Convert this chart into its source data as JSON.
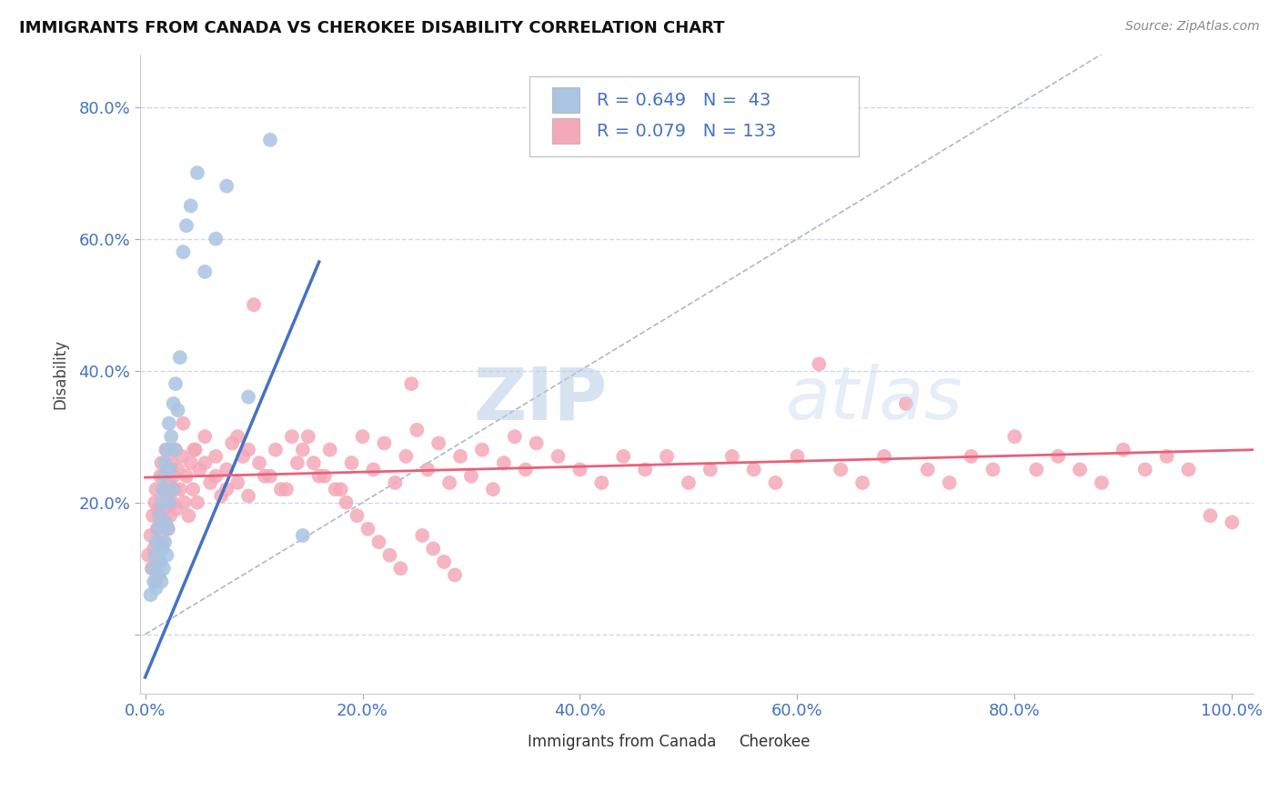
{
  "title": "IMMIGRANTS FROM CANADA VS CHEROKEE DISABILITY CORRELATION CHART",
  "source": "Source: ZipAtlas.com",
  "ylabel": "Disability",
  "xlim": [
    -0.005,
    1.02
  ],
  "ylim": [
    -0.09,
    0.88
  ],
  "xticks": [
    0.0,
    0.2,
    0.4,
    0.6,
    0.8,
    1.0
  ],
  "yticks": [
    0.0,
    0.2,
    0.4,
    0.6,
    0.8
  ],
  "ytick_labels": [
    "",
    "20.0%",
    "40.0%",
    "60.0%",
    "80.0%"
  ],
  "xtick_labels": [
    "0.0%",
    "20.0%",
    "40.0%",
    "60.0%",
    "80.0%",
    "100.0%"
  ],
  "blue_R": 0.649,
  "blue_N": 43,
  "pink_R": 0.079,
  "pink_N": 133,
  "blue_color": "#aac4e2",
  "pink_color": "#f4a8b8",
  "blue_line_color": "#4472c4",
  "pink_line_color": "#e8607a",
  "ref_line_color": "#b0b8c8",
  "tick_color": "#4472c4",
  "grid_color": "#d0d8e8",
  "legend_label_blue": "Immigrants from Canada",
  "legend_label_pink": "Cherokee",
  "watermark_zip": "ZIP",
  "watermark_atlas": "atlas",
  "blue_scatter_x": [
    0.005,
    0.007,
    0.008,
    0.009,
    0.01,
    0.01,
    0.011,
    0.012,
    0.013,
    0.013,
    0.014,
    0.015,
    0.015,
    0.016,
    0.016,
    0.017,
    0.017,
    0.018,
    0.018,
    0.019,
    0.02,
    0.02,
    0.021,
    0.022,
    0.022,
    0.023,
    0.024,
    0.025,
    0.026,
    0.027,
    0.028,
    0.03,
    0.032,
    0.035,
    0.038,
    0.042,
    0.048,
    0.055,
    0.065,
    0.075,
    0.095,
    0.115,
    0.145
  ],
  "blue_scatter_y": [
    0.06,
    0.1,
    0.08,
    0.12,
    0.07,
    0.14,
    0.1,
    0.16,
    0.09,
    0.18,
    0.11,
    0.08,
    0.2,
    0.13,
    0.22,
    0.1,
    0.24,
    0.14,
    0.26,
    0.17,
    0.12,
    0.28,
    0.16,
    0.2,
    0.32,
    0.25,
    0.3,
    0.22,
    0.35,
    0.28,
    0.38,
    0.34,
    0.42,
    0.58,
    0.62,
    0.65,
    0.7,
    0.55,
    0.6,
    0.68,
    0.36,
    0.75,
    0.15
  ],
  "pink_scatter_x": [
    0.003,
    0.005,
    0.006,
    0.007,
    0.008,
    0.009,
    0.01,
    0.01,
    0.011,
    0.012,
    0.013,
    0.014,
    0.015,
    0.015,
    0.016,
    0.017,
    0.018,
    0.019,
    0.02,
    0.021,
    0.022,
    0.023,
    0.024,
    0.025,
    0.026,
    0.027,
    0.028,
    0.029,
    0.03,
    0.032,
    0.034,
    0.036,
    0.038,
    0.04,
    0.042,
    0.044,
    0.046,
    0.048,
    0.05,
    0.055,
    0.06,
    0.065,
    0.07,
    0.075,
    0.08,
    0.085,
    0.09,
    0.095,
    0.1,
    0.11,
    0.12,
    0.13,
    0.14,
    0.15,
    0.16,
    0.17,
    0.18,
    0.19,
    0.2,
    0.21,
    0.22,
    0.23,
    0.24,
    0.25,
    0.26,
    0.27,
    0.28,
    0.29,
    0.3,
    0.31,
    0.32,
    0.33,
    0.34,
    0.35,
    0.36,
    0.38,
    0.4,
    0.42,
    0.44,
    0.46,
    0.48,
    0.5,
    0.52,
    0.54,
    0.56,
    0.58,
    0.6,
    0.62,
    0.64,
    0.66,
    0.68,
    0.7,
    0.72,
    0.74,
    0.76,
    0.78,
    0.8,
    0.82,
    0.84,
    0.86,
    0.88,
    0.9,
    0.92,
    0.94,
    0.96,
    0.98,
    1.0,
    0.035,
    0.045,
    0.055,
    0.065,
    0.075,
    0.085,
    0.095,
    0.105,
    0.115,
    0.125,
    0.135,
    0.145,
    0.155,
    0.165,
    0.175,
    0.185,
    0.195,
    0.205,
    0.215,
    0.225,
    0.235,
    0.245,
    0.255,
    0.265,
    0.275,
    0.285
  ],
  "pink_scatter_y": [
    0.12,
    0.15,
    0.1,
    0.18,
    0.13,
    0.2,
    0.08,
    0.22,
    0.16,
    0.19,
    0.11,
    0.24,
    0.17,
    0.26,
    0.14,
    0.22,
    0.19,
    0.28,
    0.21,
    0.16,
    0.23,
    0.18,
    0.26,
    0.2,
    0.24,
    0.22,
    0.28,
    0.19,
    0.25,
    0.22,
    0.27,
    0.2,
    0.24,
    0.18,
    0.26,
    0.22,
    0.28,
    0.2,
    0.25,
    0.3,
    0.23,
    0.27,
    0.21,
    0.25,
    0.29,
    0.23,
    0.27,
    0.21,
    0.5,
    0.24,
    0.28,
    0.22,
    0.26,
    0.3,
    0.24,
    0.28,
    0.22,
    0.26,
    0.3,
    0.25,
    0.29,
    0.23,
    0.27,
    0.31,
    0.25,
    0.29,
    0.23,
    0.27,
    0.24,
    0.28,
    0.22,
    0.26,
    0.3,
    0.25,
    0.29,
    0.27,
    0.25,
    0.23,
    0.27,
    0.25,
    0.27,
    0.23,
    0.25,
    0.27,
    0.25,
    0.23,
    0.27,
    0.41,
    0.25,
    0.23,
    0.27,
    0.35,
    0.25,
    0.23,
    0.27,
    0.25,
    0.3,
    0.25,
    0.27,
    0.25,
    0.23,
    0.28,
    0.25,
    0.27,
    0.25,
    0.18,
    0.17,
    0.32,
    0.28,
    0.26,
    0.24,
    0.22,
    0.3,
    0.28,
    0.26,
    0.24,
    0.22,
    0.3,
    0.28,
    0.26,
    0.24,
    0.22,
    0.2,
    0.18,
    0.16,
    0.14,
    0.12,
    0.1,
    0.38,
    0.15,
    0.13,
    0.11,
    0.09
  ],
  "blue_line_x": [
    0.0,
    0.16
  ],
  "blue_line_y": [
    -0.065,
    0.565
  ],
  "pink_line_x": [
    0.0,
    1.02
  ],
  "pink_line_y": [
    0.238,
    0.28
  ]
}
